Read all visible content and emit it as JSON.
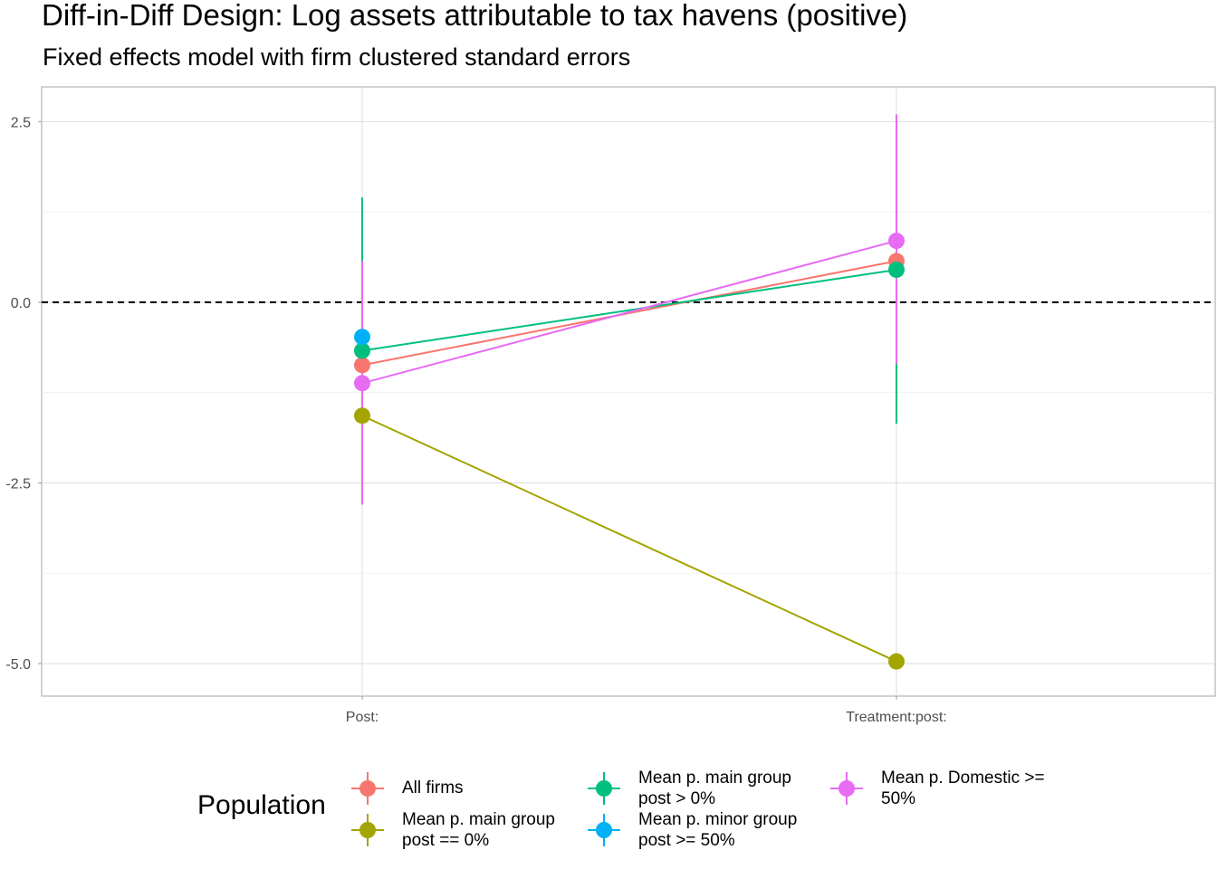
{
  "chart_data": {
    "type": "line",
    "title": "Diff-in-Diff Design: Log assets attributable to tax havens (positive)",
    "subtitle": "Fixed effects model with firm clustered standard errors",
    "categories": [
      "Post:",
      "Treatment:post:"
    ],
    "ylim": [
      -5.45,
      2.98
    ],
    "yticks": [
      2.5,
      0.0,
      -2.5,
      -5.0
    ],
    "ytick_labels": [
      "2.5",
      "0.0",
      "-2.5",
      "-5.0"
    ],
    "reference_line": 0,
    "grid": true,
    "legend": {
      "title": "Population",
      "position": "bottom"
    },
    "series": [
      {
        "name": "All firms",
        "color": "#F8766D",
        "values": [
          -0.87,
          0.57
        ],
        "lower": [
          -0.87,
          0.57
        ],
        "upper": [
          -0.87,
          0.57
        ]
      },
      {
        "name": "Mean p. main group post == 0%",
        "color": "#A3A500",
        "values": [
          -1.57,
          -4.97
        ],
        "lower": [
          -1.57,
          -4.97
        ],
        "upper": [
          -1.57,
          -4.97
        ]
      },
      {
        "name": "Mean p. main group post > 0%",
        "color": "#00BF7D",
        "values": [
          -0.67,
          0.45
        ],
        "lower": [
          -0.95,
          -1.68
        ],
        "upper": [
          1.45,
          2.6
        ]
      },
      {
        "name": "Mean p. minor group post >= 50%",
        "color": "#00B0F6",
        "values": [
          -0.48,
          null
        ],
        "lower": [
          -0.48,
          null
        ],
        "upper": [
          -0.48,
          null
        ]
      },
      {
        "name": "Mean p. Domestic >= 50%",
        "color": "#E76BF3",
        "values": [
          -1.12,
          0.85
        ],
        "lower": [
          -2.8,
          -0.85
        ],
        "upper": [
          0.57,
          2.6
        ]
      }
    ]
  }
}
